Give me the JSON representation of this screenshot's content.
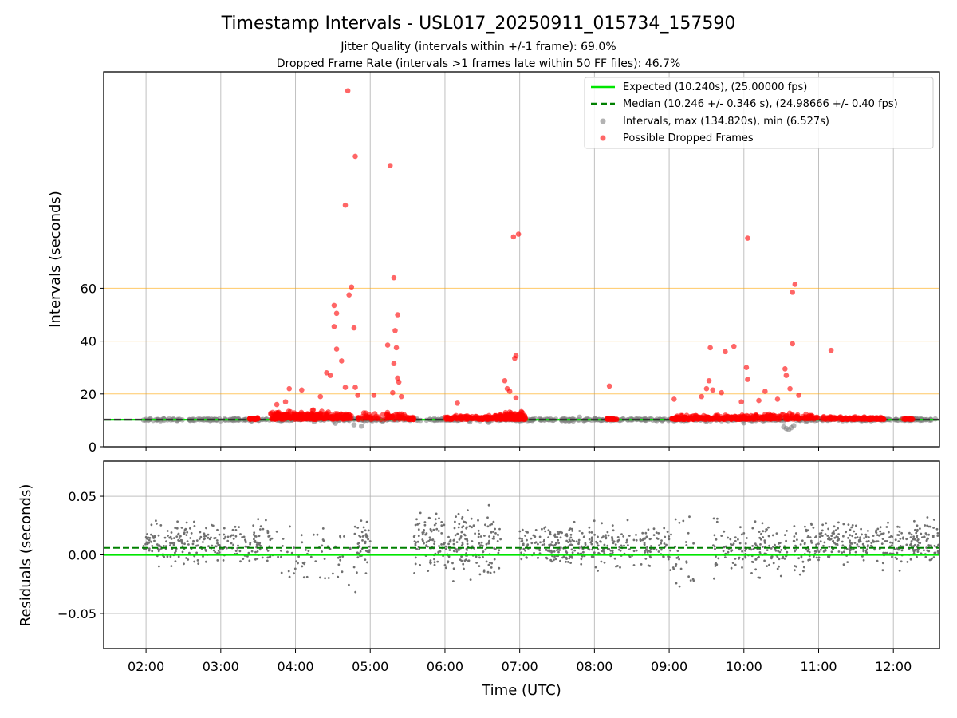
{
  "chart_data": [
    {
      "type": "scatter",
      "title": "Timestamp Intervals - USL017_20250911_015734_157590",
      "subtitle_lines": [
        "Jitter Quality (intervals within +/-1 frame): 69.0%",
        "Dropped Frame Rate (intervals >1 frames late within 50 FF files): 46.7%"
      ],
      "xlabel": "",
      "ylabel": "Intervals (seconds)",
      "xlim": [
        "01:26",
        "12:37"
      ],
      "ylim": [
        0,
        142
      ],
      "x_ticks": [
        "02:00",
        "03:00",
        "04:00",
        "05:00",
        "06:00",
        "07:00",
        "08:00",
        "09:00",
        "10:00",
        "11:00",
        "12:00"
      ],
      "y_ticks": [
        0,
        20,
        40,
        60
      ],
      "y_tick_labels": [
        "0",
        "20",
        "40",
        "60"
      ],
      "grid": true,
      "reference_hlines": [
        20,
        40,
        60
      ],
      "legend_position": "top-right",
      "series": [
        {
          "name": "Expected (10.240s), (25.00000 fps)",
          "kind": "line",
          "y": 10.24,
          "color": "#00e600"
        },
        {
          "name": "Median (10.246 +/- 0.346 s), (24.98666 +/- 0.40 fps)",
          "kind": "dashed-line",
          "y": 10.246,
          "color": "#008000"
        },
        {
          "name": "Intervals, max (134.820s), min (6.527s)",
          "kind": "scatter",
          "color": "#808080",
          "points": [
            [
              "01:58",
              10.1
            ],
            [
              "02:10",
              10.3
            ],
            [
              "02:25",
              9.9
            ],
            [
              "02:40",
              10.2
            ],
            [
              "02:55",
              10.4
            ],
            [
              "03:10",
              10.0
            ],
            [
              "03:25",
              9.8
            ],
            [
              "03:45",
              10.6
            ],
            [
              "04:15",
              9.5
            ],
            [
              "04:32",
              8.9
            ],
            [
              "04:47",
              8.3
            ],
            [
              "04:53",
              7.8
            ],
            [
              "05:10",
              9.6
            ],
            [
              "05:50",
              10.2
            ],
            [
              "06:20",
              9.4
            ],
            [
              "06:35",
              9.2
            ],
            [
              "07:00",
              9.8
            ],
            [
              "07:20",
              10.3
            ],
            [
              "07:35",
              10.6
            ],
            [
              "07:48",
              11.2
            ],
            [
              "08:05",
              10.0
            ],
            [
              "08:30",
              10.4
            ],
            [
              "08:50",
              9.9
            ],
            [
              "09:30",
              9.6
            ],
            [
              "09:50",
              10.2
            ],
            [
              "10:00",
              9.0
            ],
            [
              "10:32",
              7.5
            ],
            [
              "10:34",
              6.9
            ],
            [
              "10:36",
              6.527
            ],
            [
              "10:38",
              7.2
            ],
            [
              "10:40",
              8.0
            ],
            [
              "10:50",
              9.5
            ],
            [
              "11:30",
              10.2
            ],
            [
              "11:50",
              10.4
            ],
            [
              "12:15",
              10.5
            ],
            [
              "12:30",
              10.3
            ]
          ]
        },
        {
          "name": "Possible Dropped Frames",
          "kind": "scatter",
          "color": "#ff0000",
          "points": [
            [
              "04:42",
              134.82
            ],
            [
              "04:48",
              110.0
            ],
            [
              "05:16",
              106.5
            ],
            [
              "04:40",
              91.5
            ],
            [
              "06:55",
              79.5
            ],
            [
              "06:59",
              80.5
            ],
            [
              "10:03",
              79.0
            ],
            [
              "05:19",
              64.0
            ],
            [
              "04:45",
              60.5
            ],
            [
              "04:43",
              57.5
            ],
            [
              "10:41",
              61.5
            ],
            [
              "10:39",
              58.5
            ],
            [
              "04:31",
              53.5
            ],
            [
              "04:33",
              50.5
            ],
            [
              "05:22",
              50.0
            ],
            [
              "04:31",
              45.5
            ],
            [
              "04:47",
              45.0
            ],
            [
              "05:20",
              44.0
            ],
            [
              "05:14",
              38.5
            ],
            [
              "05:21",
              37.5
            ],
            [
              "10:39",
              39.0
            ],
            [
              "09:33",
              37.5
            ],
            [
              "09:52",
              38.0
            ],
            [
              "09:45",
              36.0
            ],
            [
              "11:10",
              36.5
            ],
            [
              "04:33",
              37.0
            ],
            [
              "04:37",
              32.5
            ],
            [
              "05:19",
              31.5
            ],
            [
              "06:56",
              33.5
            ],
            [
              "06:57",
              34.5
            ],
            [
              "10:02",
              30.0
            ],
            [
              "10:33",
              29.5
            ],
            [
              "04:25",
              28.0
            ],
            [
              "04:28",
              27.0
            ],
            [
              "05:22",
              26.0
            ],
            [
              "05:23",
              24.5
            ],
            [
              "06:48",
              25.0
            ],
            [
              "09:32",
              25.0
            ],
            [
              "10:03",
              25.5
            ],
            [
              "10:34",
              27.0
            ],
            [
              "03:55",
              22.0
            ],
            [
              "04:05",
              21.5
            ],
            [
              "04:40",
              22.5
            ],
            [
              "04:48",
              22.5
            ],
            [
              "06:50",
              22.0
            ],
            [
              "06:52",
              21.0
            ],
            [
              "08:12",
              23.0
            ],
            [
              "09:30",
              22.0
            ],
            [
              "09:35",
              21.5
            ],
            [
              "09:42",
              20.5
            ],
            [
              "10:17",
              21.0
            ],
            [
              "10:37",
              22.0
            ],
            [
              "10:44",
              19.5
            ],
            [
              "03:45",
              16.0
            ],
            [
              "03:52",
              17.0
            ],
            [
              "04:20",
              19.0
            ],
            [
              "04:50",
              19.5
            ],
            [
              "05:03",
              19.5
            ],
            [
              "05:25",
              19.0
            ],
            [
              "06:10",
              16.5
            ],
            [
              "06:57",
              18.5
            ],
            [
              "09:04",
              18.0
            ],
            [
              "09:26",
              19.0
            ],
            [
              "09:58",
              17.0
            ],
            [
              "10:12",
              17.5
            ],
            [
              "10:27",
              18.0
            ],
            [
              "05:18",
              20.5
            ]
          ]
        }
      ]
    },
    {
      "type": "scatter",
      "title": "",
      "xlabel": "Time (UTC)",
      "ylabel": "Residuals (seconds)",
      "xlim": [
        "01:26",
        "12:37"
      ],
      "ylim": [
        -0.08,
        0.08
      ],
      "x_ticks": [
        "02:00",
        "03:00",
        "04:00",
        "05:00",
        "06:00",
        "07:00",
        "08:00",
        "09:00",
        "10:00",
        "11:00",
        "12:00"
      ],
      "y_ticks": [
        0.05,
        0.0,
        -0.05
      ],
      "y_tick_labels": [
        "0.05",
        "0.00",
        "−0.05"
      ],
      "grid": true,
      "series": [
        {
          "name": "Expected",
          "kind": "line",
          "y": 0.0,
          "color": "#00e600"
        },
        {
          "name": "Median",
          "kind": "dashed-line",
          "y": 0.006,
          "color": "#008000"
        },
        {
          "name": "Residuals",
          "kind": "scatter",
          "color": "#707070",
          "clusters": [
            {
              "start": "01:58",
              "end": "03:40",
              "center": 0.01,
              "spread": 0.025,
              "count": 260
            },
            {
              "start": "03:40",
              "end": "04:50",
              "center": 0.0,
              "spread": 0.045,
              "count": 70
            },
            {
              "start": "04:50",
              "end": "05:00",
              "center": 0.01,
              "spread": 0.03,
              "count": 40
            },
            {
              "start": "05:35",
              "end": "06:45",
              "center": 0.01,
              "spread": 0.04,
              "count": 240
            },
            {
              "start": "07:00",
              "end": "09:00",
              "center": 0.008,
              "spread": 0.025,
              "count": 330
            },
            {
              "start": "09:00",
              "end": "09:20",
              "center": 0.0,
              "spread": 0.05,
              "count": 30
            },
            {
              "start": "09:35",
              "end": "10:50",
              "center": 0.005,
              "spread": 0.03,
              "count": 180
            },
            {
              "start": "10:50",
              "end": "12:37",
              "center": 0.01,
              "spread": 0.025,
              "count": 330
            }
          ]
        }
      ]
    }
  ]
}
